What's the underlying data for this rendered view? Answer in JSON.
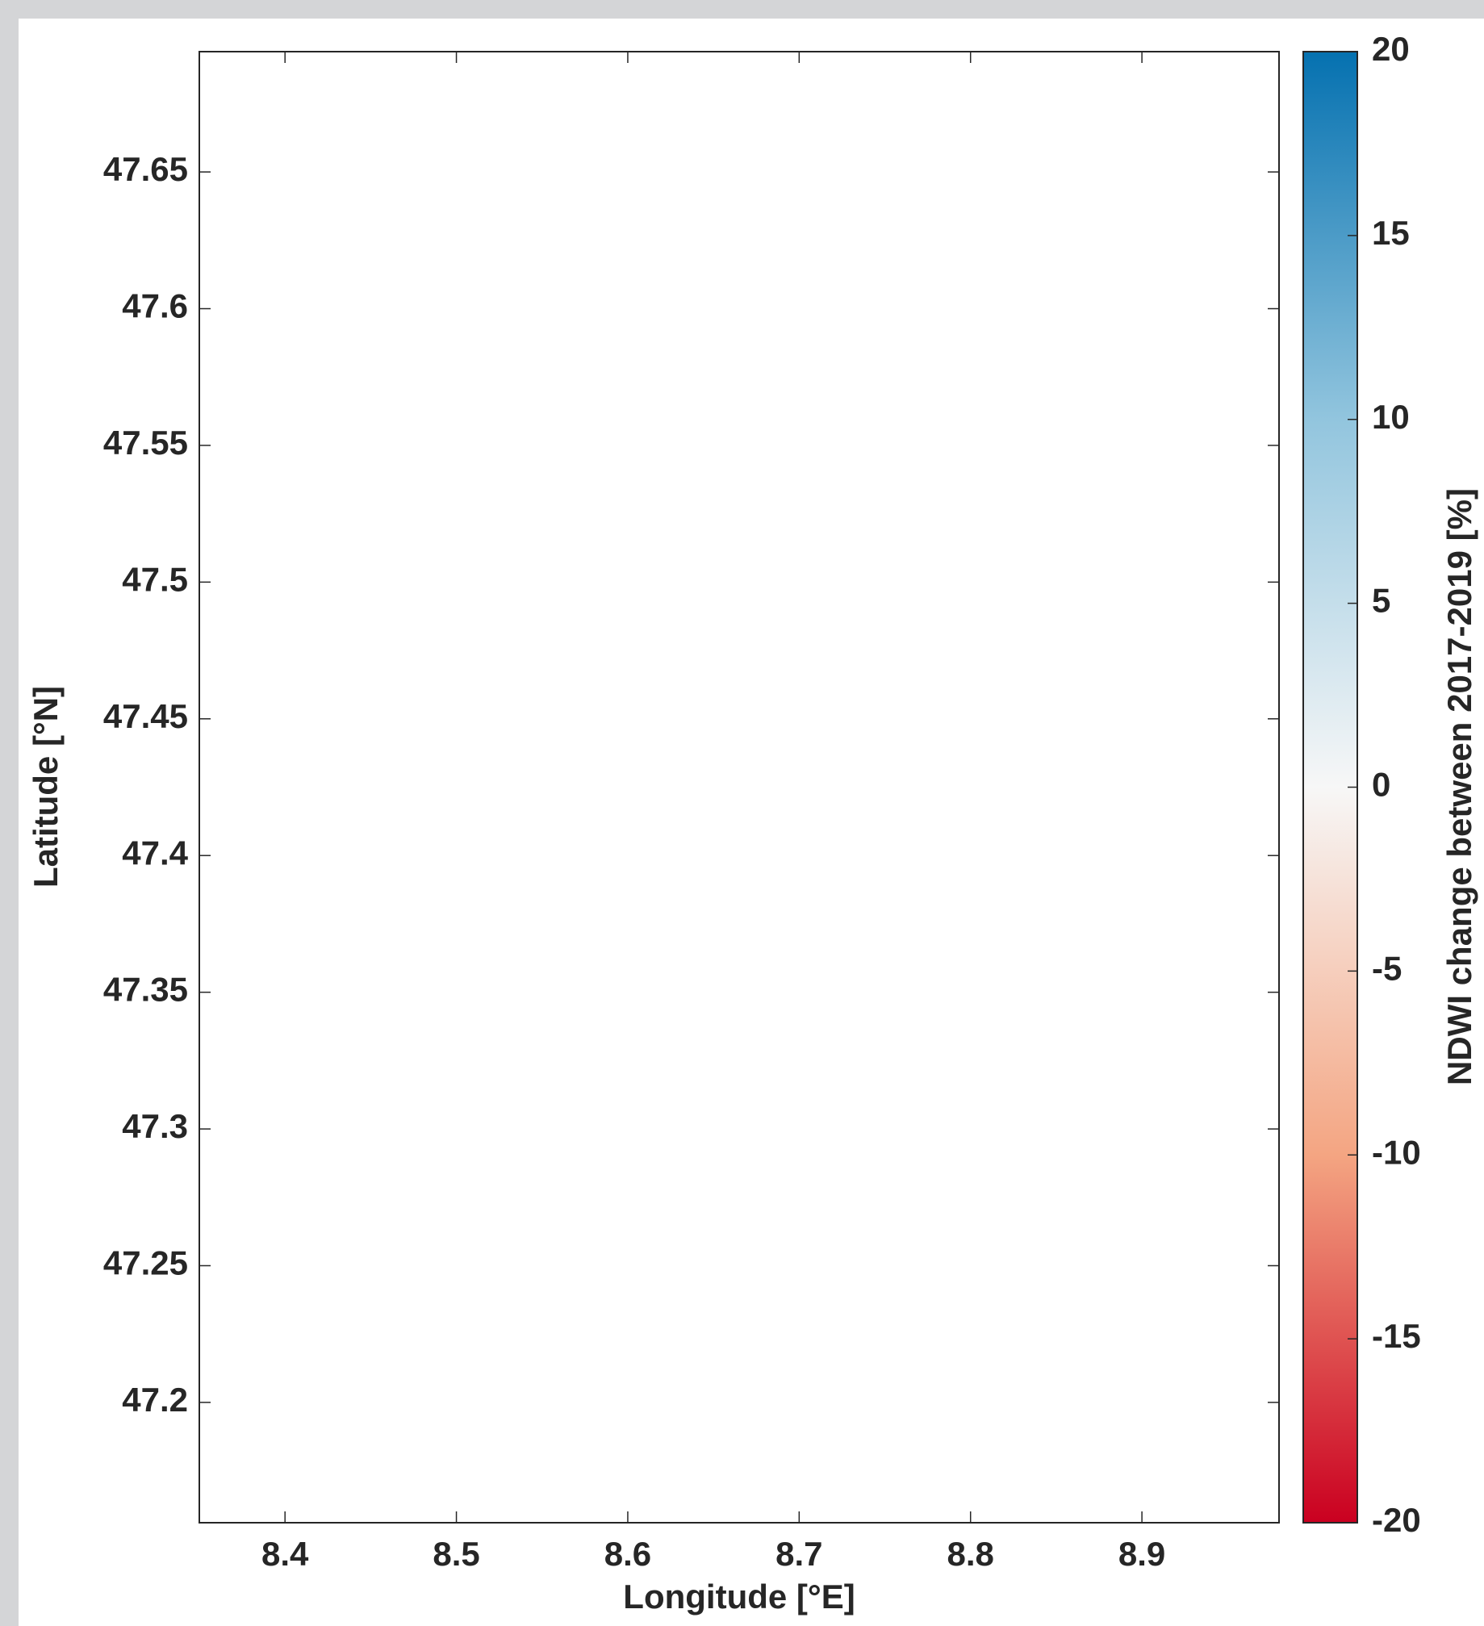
{
  "chart_data": {
    "type": "raster-map",
    "xlabel": "Longitude [°E]",
    "ylabel": "Latitude [°N]",
    "xlim": [
      8.35,
      8.98
    ],
    "xticks": [
      8.4,
      8.5,
      8.6,
      8.7,
      8.8,
      8.9
    ],
    "ylim": [
      47.156,
      47.694
    ],
    "yticks": [
      47.2,
      47.25,
      47.3,
      47.35,
      47.4,
      47.45,
      47.5,
      47.55,
      47.6,
      47.65
    ],
    "colorbar": {
      "label": "NDWI change between 2017-2019 [%]",
      "clim": [
        -20,
        20
      ],
      "ticks": [
        -20,
        -15,
        -10,
        -5,
        0,
        5,
        10,
        15,
        20
      ],
      "colormap": [
        "#ca0020",
        "#f4a582",
        "#f7f7f7",
        "#92c5de",
        "#0571b0"
      ]
    }
  }
}
